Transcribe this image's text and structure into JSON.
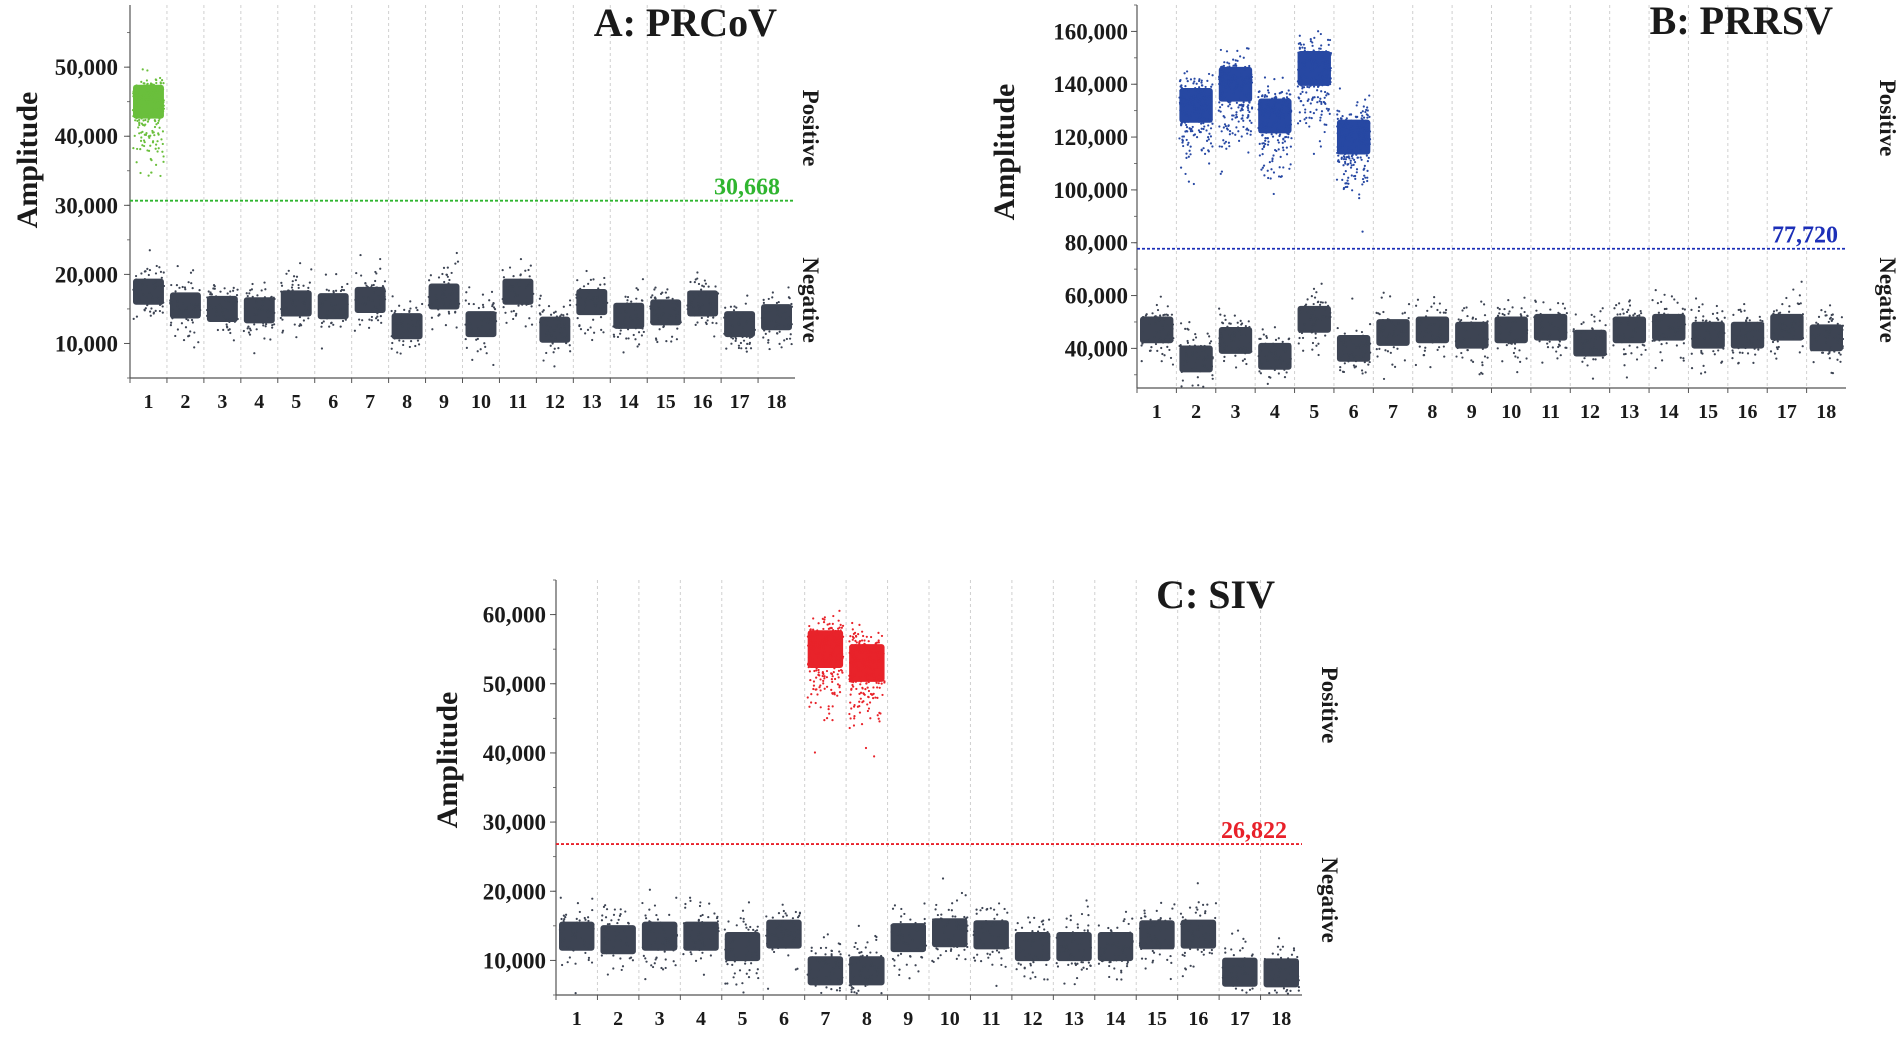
{
  "colors": {
    "negative_droplets": "#3d4453",
    "axis": "#555555",
    "gridline": "#d0d0d0",
    "text": "#1a1a1a"
  },
  "chart_data": [
    {
      "type": "scatter",
      "title": "A: PRCoV",
      "ylabel": "Amplitude",
      "xlabel": "",
      "ylim": [
        5000,
        59000
      ],
      "yticks": [
        10000,
        20000,
        30000,
        40000,
        50000
      ],
      "ytick_labels": [
        "10,000",
        "20,000",
        "30,000",
        "40,000",
        "50,000"
      ],
      "categories": [
        "1",
        "2",
        "3",
        "4",
        "5",
        "6",
        "7",
        "8",
        "9",
        "10",
        "11",
        "12",
        "13",
        "14",
        "15",
        "16",
        "17",
        "18"
      ],
      "threshold": 30668,
      "threshold_label": "30,668",
      "threshold_color": "#2fb52f",
      "positive_color": "#6abf3c",
      "positive_label": "Positive",
      "negative_label": "Negative",
      "negative_cluster_means": [
        17500,
        15500,
        15000,
        14800,
        15800,
        15400,
        16300,
        12500,
        16800,
        12800,
        17500,
        12000,
        16000,
        14000,
        14500,
        15800,
        12800,
        13800
      ],
      "positive_cluster_means": [
        45000,
        0,
        0,
        0,
        0,
        0,
        0,
        0,
        0,
        0,
        0,
        0,
        0,
        0,
        0,
        0,
        0,
        0
      ]
    },
    {
      "type": "scatter",
      "title": "B: PRRSV",
      "ylabel": "Amplitude",
      "xlabel": "",
      "ylim": [
        25000,
        170000
      ],
      "yticks": [
        40000,
        60000,
        80000,
        100000,
        120000,
        140000,
        160000
      ],
      "ytick_labels": [
        "40,000",
        "60,000",
        "80,000",
        "100,000",
        "120,000",
        "140,000",
        "160,000"
      ],
      "categories": [
        "1",
        "2",
        "3",
        "4",
        "5",
        "6",
        "7",
        "8",
        "9",
        "10",
        "11",
        "12",
        "13",
        "14",
        "15",
        "16",
        "17",
        "18"
      ],
      "threshold": 77720,
      "threshold_label": "77,720",
      "threshold_color": "#1c2fb8",
      "positive_color": "#2748a3",
      "positive_label": "Positive",
      "negative_label": "Negative",
      "negative_cluster_means": [
        47000,
        36000,
        43000,
        37000,
        51000,
        40000,
        46000,
        47000,
        45000,
        47000,
        48000,
        42000,
        47000,
        48000,
        45000,
        45000,
        48000,
        44000
      ],
      "positive_cluster_means": [
        0,
        132000,
        140000,
        128000,
        146000,
        120000,
        0,
        0,
        0,
        0,
        0,
        0,
        0,
        0,
        0,
        0,
        0,
        0
      ]
    },
    {
      "type": "scatter",
      "title": "C: SIV",
      "ylabel": "Amplitude",
      "xlabel": "",
      "ylim": [
        5000,
        65000
      ],
      "yticks": [
        10000,
        20000,
        30000,
        40000,
        50000,
        60000
      ],
      "ytick_labels": [
        "10,000",
        "20,000",
        "30,000",
        "40,000",
        "50,000",
        "60,000"
      ],
      "categories": [
        "1",
        "2",
        "3",
        "4",
        "5",
        "6",
        "7",
        "8",
        "9",
        "10",
        "11",
        "12",
        "13",
        "14",
        "15",
        "16",
        "17",
        "18"
      ],
      "threshold": 26822,
      "threshold_label": "26,822",
      "threshold_color": "#e8212a",
      "positive_color": "#e8232a",
      "positive_label": "Positive",
      "negative_label": "Negative",
      "negative_cluster_means": [
        13500,
        13000,
        13500,
        13500,
        12000,
        13800,
        8500,
        8500,
        13300,
        14000,
        13700,
        12000,
        12000,
        12000,
        13700,
        13800,
        8300,
        8200
      ],
      "positive_cluster_means": [
        0,
        0,
        0,
        0,
        0,
        0,
        55000,
        53000,
        0,
        0,
        0,
        0,
        0,
        0,
        0,
        0,
        0,
        0
      ]
    }
  ]
}
